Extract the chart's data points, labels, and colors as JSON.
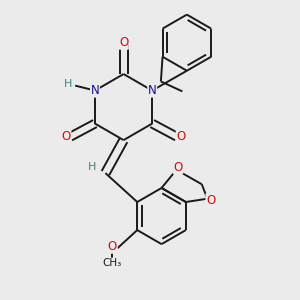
{
  "bg_color": "#ebebeb",
  "bond_color": "#1a1a1a",
  "N_color": "#1010a0",
  "O_color": "#cc1010",
  "H_color": "#4a8080",
  "font_size_atom": 8.5,
  "line_width": 1.4,
  "xlim": [
    0.05,
    0.95
  ],
  "ylim": [
    0.05,
    0.95
  ]
}
